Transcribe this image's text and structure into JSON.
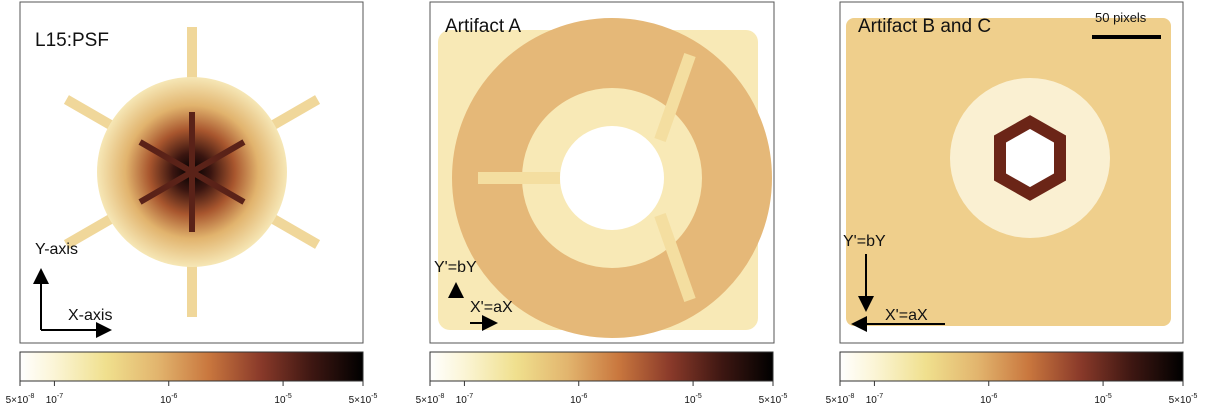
{
  "panels": [
    {
      "title": "L15:PSF",
      "y_arrow_label": "Y-axis",
      "x_arrow_label": "X-axis",
      "colorbar": {
        "lim": [
          5e-08,
          5e-05
        ],
        "log": true,
        "ticks": [
          {
            "value": 5e-08,
            "mantissa": "5×10",
            "exponent": "-8"
          },
          {
            "value": 1e-07,
            "mantissa": "10",
            "exponent": "-7"
          },
          {
            "value": 1e-06,
            "mantissa": "10",
            "exponent": "-6"
          },
          {
            "value": 1e-05,
            "mantissa": "10",
            "exponent": "-5"
          },
          {
            "value": 5e-05,
            "mantissa": "5×10",
            "exponent": "-5"
          }
        ]
      }
    },
    {
      "title": "Artifact A",
      "y_arrow_label": "Y'=bY",
      "x_arrow_label": "X'=aX",
      "colorbar": {
        "lim": [
          5e-08,
          5e-05
        ],
        "log": true,
        "ticks": [
          {
            "value": 5e-08,
            "mantissa": "5×10",
            "exponent": "-8"
          },
          {
            "value": 1e-07,
            "mantissa": "10",
            "exponent": "-7"
          },
          {
            "value": 1e-06,
            "mantissa": "10",
            "exponent": "-6"
          },
          {
            "value": 1e-05,
            "mantissa": "10",
            "exponent": "-5"
          },
          {
            "value": 5e-05,
            "mantissa": "5×10",
            "exponent": "-5"
          }
        ]
      }
    },
    {
      "title": "Artifact B and C",
      "scale_bar_label": "50 pixels",
      "y_arrow_label": "Y'=bY",
      "x_arrow_label": "X'=aX",
      "colorbar": {
        "lim": [
          5e-08,
          5e-05
        ],
        "log": true,
        "ticks": [
          {
            "value": 5e-08,
            "mantissa": "5×10",
            "exponent": "-8"
          },
          {
            "value": 1e-07,
            "mantissa": "10",
            "exponent": "-7"
          },
          {
            "value": 1e-06,
            "mantissa": "10",
            "exponent": "-6"
          },
          {
            "value": 1e-05,
            "mantissa": "10",
            "exponent": "-5"
          },
          {
            "value": 5e-05,
            "mantissa": "5×10",
            "exponent": "-5"
          }
        ]
      }
    }
  ]
}
